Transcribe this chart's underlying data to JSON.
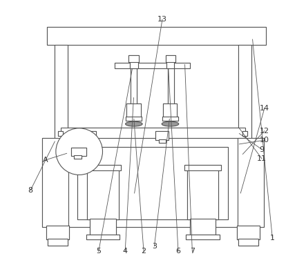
{
  "bg_color": "#ffffff",
  "line_color": "#555555",
  "lw": 0.8,
  "label_color": "#333333",
  "label_fs": 8,
  "leader_lines": [
    [
      "1",
      [
        0.95,
        0.105
      ],
      [
        0.875,
        0.855
      ]
    ],
    [
      "2",
      [
        0.465,
        0.055
      ],
      [
        0.428,
        0.555
      ]
    ],
    [
      "3",
      [
        0.505,
        0.075
      ],
      [
        0.562,
        0.555
      ]
    ],
    [
      "4",
      [
        0.395,
        0.055
      ],
      [
        0.427,
        0.635
      ]
    ],
    [
      "5",
      [
        0.295,
        0.055
      ],
      [
        0.422,
        0.745
      ]
    ],
    [
      "6",
      [
        0.595,
        0.055
      ],
      [
        0.558,
        0.745
      ]
    ],
    [
      "7",
      [
        0.648,
        0.055
      ],
      [
        0.62,
        0.76
      ]
    ],
    [
      "8",
      [
        0.038,
        0.285
      ],
      [
        0.13,
        0.47
      ]
    ],
    [
      "9",
      [
        0.91,
        0.44
      ],
      [
        0.825,
        0.5
      ]
    ],
    [
      "10",
      [
        0.92,
        0.475
      ],
      [
        0.825,
        0.46
      ]
    ],
    [
      "11",
      [
        0.91,
        0.405
      ],
      [
        0.825,
        0.52
      ]
    ],
    [
      "12",
      [
        0.92,
        0.51
      ],
      [
        0.838,
        0.422
      ]
    ],
    [
      "13",
      [
        0.535,
        0.93
      ],
      [
        0.43,
        0.275
      ]
    ],
    [
      "14",
      [
        0.92,
        0.595
      ],
      [
        0.83,
        0.275
      ]
    ],
    [
      "A",
      [
        0.095,
        0.4
      ],
      [
        0.175,
        0.425
      ]
    ]
  ]
}
